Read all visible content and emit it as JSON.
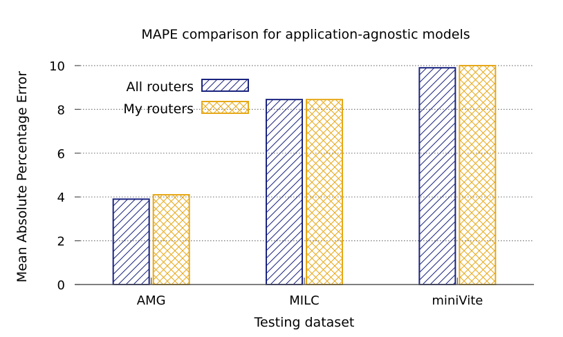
{
  "chart_data": {
    "type": "bar",
    "title": "MAPE comparison for application-agnostic models",
    "xlabel": "Testing dataset",
    "ylabel": "Mean Absolute Percentage Error",
    "categories": [
      "AMG",
      "MILC",
      "miniVite"
    ],
    "ylim": [
      0,
      10
    ],
    "yticks": [
      0,
      2,
      4,
      6,
      8,
      10
    ],
    "grid": true,
    "legend_position": "top-left",
    "series": [
      {
        "name": "All routers",
        "values": [
          3.9,
          8.45,
          9.9
        ],
        "color": "#1a237e",
        "pattern": "diagonal-hatch"
      },
      {
        "name": "My routers",
        "values": [
          4.1,
          8.45,
          10.0
        ],
        "color": "#e6a817",
        "pattern": "cross-hatch"
      }
    ]
  }
}
